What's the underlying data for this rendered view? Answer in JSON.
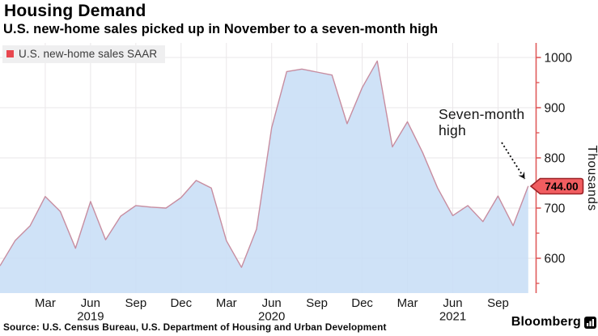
{
  "header": {
    "title": "Housing Demand",
    "subtitle": "U.S. new-home sales picked up in November to a seven-month high"
  },
  "legend": {
    "swatch_color": "#e8474f",
    "label": "U.S. new-home sales SAAR"
  },
  "annotation": {
    "line1": "Seven-month",
    "line2": "high"
  },
  "badge": {
    "value": "744.00",
    "fill": "#f15d60",
    "border": "#9b2227"
  },
  "footer": {
    "source": "Source: U.S. Census Bureau, U.S. Department of Housing and Urban Development",
    "logo_text": "Bloomberg"
  },
  "chart_data": {
    "type": "area",
    "title": "Housing Demand",
    "subtitle": "U.S. new-home sales picked up in November to a seven-month high",
    "series_name": "U.S. new-home sales SAAR",
    "unit_label": "Thousands",
    "annotation_text": "Seven-month high",
    "last_point_label": "744.00",
    "legend_position": "top-left",
    "grid": true,
    "x": [
      "Dec 2018",
      "Jan 2019",
      "Feb 2019",
      "Mar 2019",
      "Apr 2019",
      "May 2019",
      "Jun 2019",
      "Jul 2019",
      "Aug 2019",
      "Sep 2019",
      "Oct 2019",
      "Nov 2019",
      "Dec 2019",
      "Jan 2020",
      "Feb 2020",
      "Mar 2020",
      "Apr 2020",
      "May 2020",
      "Jun 2020",
      "Jul 2020",
      "Aug 2020",
      "Sep 2020",
      "Oct 2020",
      "Nov 2020",
      "Dec 2020",
      "Jan 2021",
      "Feb 2021",
      "Mar 2021",
      "Apr 2021",
      "May 2021",
      "Jun 2021",
      "Jul 2021",
      "Aug 2021",
      "Sep 2021",
      "Oct 2021",
      "Nov 2021"
    ],
    "values": [
      585,
      635,
      665,
      723,
      693,
      620,
      713,
      637,
      684,
      705,
      702,
      700,
      721,
      755,
      740,
      635,
      582,
      658,
      860,
      972,
      977,
      971,
      965,
      868,
      940,
      993,
      822,
      872,
      811,
      740,
      685,
      705,
      673,
      724,
      665,
      744
    ],
    "ylim": [
      535,
      1028
    ],
    "y_ticks": [
      600,
      700,
      800,
      900,
      1000
    ],
    "y_minor_ticks": [
      550,
      650,
      750,
      850,
      950
    ],
    "x_ticks": [
      {
        "label": "Mar",
        "index": 3
      },
      {
        "label": "Jun",
        "index": 6
      },
      {
        "label": "Sep",
        "index": 9
      },
      {
        "label": "Dec",
        "index": 12
      },
      {
        "label": "Mar",
        "index": 15
      },
      {
        "label": "Jun",
        "index": 18
      },
      {
        "label": "Sep",
        "index": 21
      },
      {
        "label": "Dec",
        "index": 24
      },
      {
        "label": "Mar",
        "index": 27
      },
      {
        "label": "Jun",
        "index": 30
      },
      {
        "label": "Sep",
        "index": 33
      }
    ],
    "year_labels": [
      {
        "label": "2019",
        "index": 6
      },
      {
        "label": "2020",
        "index": 18
      },
      {
        "label": "2021",
        "index": 30
      }
    ],
    "colors": {
      "area_fill": "#c8def6",
      "line": "#c78da0",
      "axis": "#e05b5b",
      "grid": "#eae7e9",
      "tick_text": "#161616",
      "badge_fill": "#f15d60",
      "badge_border": "#9b2227"
    }
  }
}
